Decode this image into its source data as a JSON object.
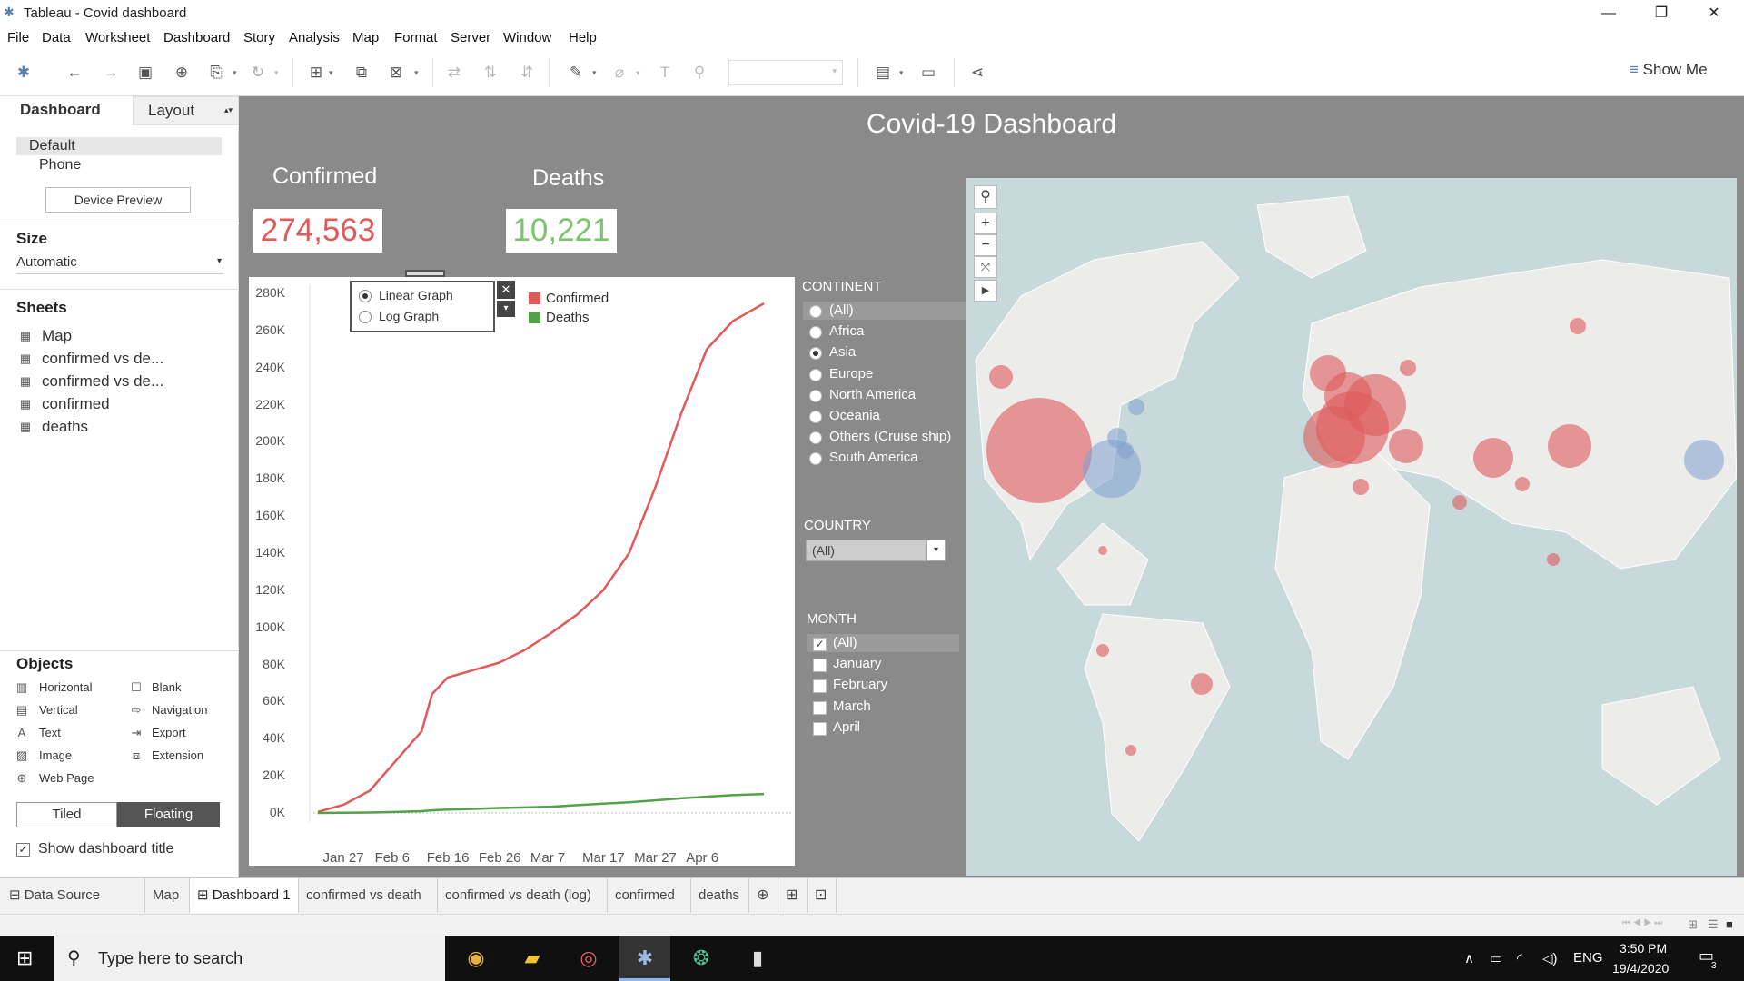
{
  "window": {
    "title": "Tableau - Covid dashboard"
  },
  "menu": [
    "File",
    "Data",
    "Worksheet",
    "Dashboard",
    "Story",
    "Analysis",
    "Map",
    "Format",
    "Server",
    "Window",
    "Help"
  ],
  "toolbar": {
    "show_me": "Show Me"
  },
  "left": {
    "tabs": {
      "dashboard": "Dashboard",
      "layout": "Layout"
    },
    "devices": {
      "default": "Default",
      "phone": "Phone",
      "preview": "Device Preview"
    },
    "size": {
      "heading": "Size",
      "value": "Automatic"
    },
    "sheets": {
      "heading": "Sheets",
      "items": [
        "Map",
        "confirmed vs de...",
        "confirmed vs de...",
        "confirmed",
        "deaths"
      ]
    },
    "objects": {
      "heading": "Objects",
      "items": [
        "Horizontal",
        "Blank",
        "Vertical",
        "Navigation",
        "Text",
        "Export",
        "Image",
        "Extension",
        "Web Page"
      ]
    },
    "mode": {
      "tiled": "Tiled",
      "floating": "Floating"
    },
    "show_title": "Show dashboard title"
  },
  "dashboard": {
    "title": "Covid-19 Dashboard",
    "confirmed": {
      "label": "Confirmed",
      "value": "274,563",
      "color": "#e05a5a"
    },
    "deaths": {
      "label": "Deaths",
      "value": "10,221",
      "color": "#7ac46b"
    },
    "graph_toggle": {
      "linear": "Linear Graph",
      "log": "Log Graph",
      "selected": "Linear Graph"
    },
    "continent": {
      "heading": "CONTINENT",
      "options": [
        "(All)",
        "Africa",
        "Asia",
        "Europe",
        "North America",
        "Oceania",
        "Others (Cruise ship)",
        "South America"
      ],
      "selected": "Asia"
    },
    "country": {
      "heading": "COUNTRY",
      "value": "(All)"
    },
    "month": {
      "heading": "MONTH",
      "options": [
        "(All)",
        "January",
        "February",
        "March",
        "April"
      ],
      "checked": [
        "(All)"
      ]
    }
  },
  "chart_data": {
    "type": "line",
    "x": [
      "Jan 22",
      "Jan 27",
      "Feb 1",
      "Feb 6",
      "Feb 11",
      "Feb 13",
      "Feb 16",
      "Feb 21",
      "Feb 26",
      "Mar 2",
      "Mar 7",
      "Mar 12",
      "Mar 17",
      "Mar 22",
      "Mar 27",
      "Apr 1",
      "Apr 6",
      "Apr 11",
      "Apr 17"
    ],
    "series": [
      {
        "name": "Confirmed",
        "color": "#e05a5a",
        "values": [
          600,
          4500,
          12000,
          28000,
          44000,
          64000,
          73000,
          77000,
          81000,
          88000,
          97000,
          107000,
          120000,
          140000,
          175000,
          215000,
          250000,
          265000,
          274563
        ]
      },
      {
        "name": "Deaths",
        "color": "#55a04a",
        "values": [
          17,
          100,
          260,
          560,
          1000,
          1400,
          1800,
          2200,
          2700,
          3000,
          3400,
          4200,
          5000,
          5800,
          6800,
          7900,
          8800,
          9600,
          10221
        ]
      }
    ],
    "xticks": [
      "Jan 27",
      "Feb 6",
      "Feb 16",
      "Feb 26",
      "Mar 7",
      "Mar 17",
      "Mar 27",
      "Apr 6"
    ],
    "yticks": [
      "0K",
      "20K",
      "40K",
      "60K",
      "80K",
      "100K",
      "120K",
      "140K",
      "160K",
      "180K",
      "200K",
      "220K",
      "240K",
      "260K",
      "280K"
    ],
    "ylim": [
      0,
      280000
    ],
    "legend": "top-left"
  },
  "bottom_tabs": {
    "data_source": "Data Source",
    "sheets": [
      "Map",
      "Dashboard 1",
      "confirmed vs death",
      "confirmed vs death (log)",
      "confirmed",
      "deaths"
    ],
    "active": "Dashboard 1"
  },
  "taskbar": {
    "search": "Type here to search",
    "lang": "ENG",
    "time": "3:50 PM",
    "date": "19/4/2020",
    "notif": "3"
  }
}
